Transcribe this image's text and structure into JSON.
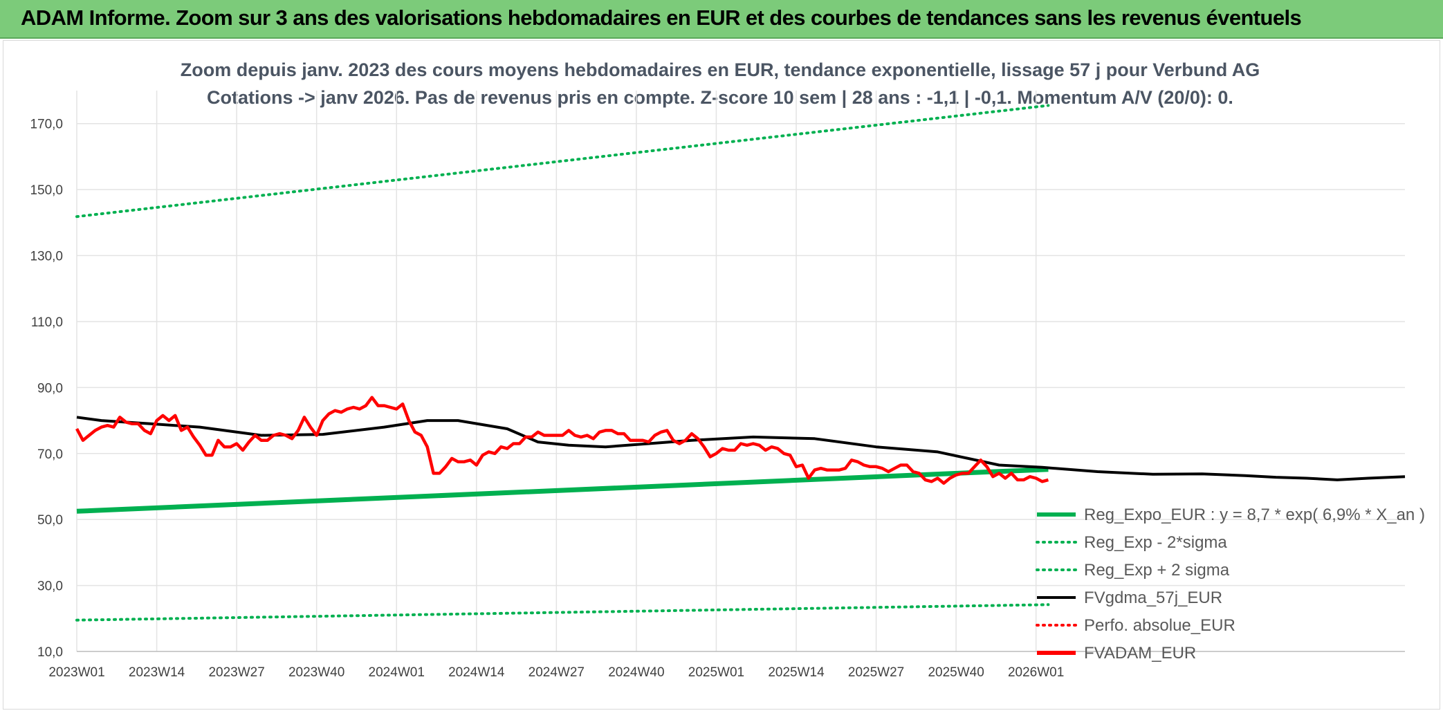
{
  "banner": {
    "title": "ADAM Informe. Zoom sur 3 ans des valorisations hebdomadaires en EUR et des courbes de tendances sans les revenus éventuels",
    "background": "#7ccb7a"
  },
  "chart_data": {
    "type": "line",
    "title": "Zoom depuis janv. 2023 des cours moyens hebdomadaires en EUR, tendance exponentielle, lissage 57 j pour Verbund AG",
    "subtitle": "Cotations -> janv 2026. Pas de revenus pris en compte. Z-score 10 sem | 28 ans : -1,1 | -0,1. Momentum A/V (20/0): 0.",
    "xlabel": "",
    "ylabel": "",
    "ylim": [
      10,
      180
    ],
    "yticks": [
      "10,0",
      "30,0",
      "50,0",
      "70,0",
      "90,0",
      "110,0",
      "130,0",
      "150,0",
      "170,0"
    ],
    "ytick_values": [
      10,
      30,
      50,
      70,
      90,
      110,
      130,
      150,
      170
    ],
    "x_categories": [
      "2023W01",
      "2023W14",
      "2023W27",
      "2023W40",
      "2024W01",
      "2024W14",
      "2024W27",
      "2024W40",
      "2025W01",
      "2025W14",
      "2025W27",
      "2025W40",
      "2026W01"
    ],
    "n_weeks": 159,
    "grid": true,
    "legend_position": "bottom-right",
    "series": [
      {
        "name": "Reg_Expo_EUR : y = 8,7 * exp( 6,9% * X_an )",
        "color": "#00b050",
        "style": "solid-thick",
        "points": [
          [
            0,
            52.5
          ],
          [
            158,
            65.2
          ]
        ]
      },
      {
        "name": "Reg_Exp - 2*sigma",
        "color": "#00b050",
        "style": "dotted",
        "points": [
          [
            0,
            19.5
          ],
          [
            158,
            24.2
          ]
        ]
      },
      {
        "name": "Reg_Exp + 2 sigma",
        "color": "#00b050",
        "style": "dotted",
        "points": [
          [
            0,
            141.8
          ],
          [
            158,
            175.5
          ]
        ]
      },
      {
        "name": "FVgdma_57j_EUR",
        "color": "#000000",
        "style": "solid",
        "points": [
          [
            0,
            81
          ],
          [
            4,
            80
          ],
          [
            12,
            79
          ],
          [
            20,
            78
          ],
          [
            30,
            75.5
          ],
          [
            40,
            75.8
          ],
          [
            50,
            78
          ],
          [
            57,
            80
          ],
          [
            62,
            80
          ],
          [
            70,
            77.5
          ],
          [
            75,
            73.5
          ],
          [
            80,
            72.5
          ],
          [
            86,
            72
          ],
          [
            93,
            73
          ],
          [
            100,
            74
          ],
          [
            110,
            75
          ],
          [
            120,
            74.5
          ],
          [
            130,
            72
          ],
          [
            140,
            70.5
          ],
          [
            150,
            66.5
          ],
          [
            157,
            65.8
          ],
          [
            166,
            64.5
          ],
          [
            175,
            63.7
          ],
          [
            183,
            63.8
          ],
          [
            190,
            63.3
          ],
          [
            195,
            62.8
          ],
          [
            200,
            62.5
          ],
          [
            205,
            62
          ],
          [
            210,
            62.5
          ],
          [
            216,
            63
          ]
        ]
      },
      {
        "name": "Perfo. absolue_EUR",
        "color": "#ff0000",
        "style": "dotted",
        "points": []
      },
      {
        "name": "FVADAM_EUR",
        "color": "#ff0000",
        "style": "solid-thick",
        "points": [
          [
            0,
            77.5
          ],
          [
            1,
            74
          ],
          [
            2,
            75.5
          ],
          [
            3,
            77
          ],
          [
            4,
            78
          ],
          [
            5,
            78.5
          ],
          [
            6,
            78
          ],
          [
            7,
            81
          ],
          [
            8,
            79.5
          ],
          [
            9,
            79
          ],
          [
            10,
            79
          ],
          [
            11,
            77
          ],
          [
            12,
            76
          ],
          [
            13,
            80
          ],
          [
            14,
            81.5
          ],
          [
            15,
            80
          ],
          [
            16,
            81.5
          ],
          [
            17,
            77
          ],
          [
            18,
            78
          ],
          [
            19,
            75
          ],
          [
            20,
            72.5
          ],
          [
            21,
            69.5
          ],
          [
            22,
            69.5
          ],
          [
            23,
            74
          ],
          [
            24,
            72
          ],
          [
            25,
            72
          ],
          [
            26,
            73
          ],
          [
            27,
            71
          ],
          [
            28,
            73.5
          ],
          [
            29,
            75.5
          ],
          [
            30,
            74
          ],
          [
            31,
            74
          ],
          [
            32,
            75.5
          ],
          [
            33,
            76
          ],
          [
            34,
            75.5
          ],
          [
            35,
            74.5
          ],
          [
            36,
            77
          ],
          [
            37,
            81
          ],
          [
            38,
            78
          ],
          [
            39,
            75.5
          ],
          [
            40,
            80
          ],
          [
            41,
            82
          ],
          [
            42,
            83
          ],
          [
            43,
            82.5
          ],
          [
            44,
            83.5
          ],
          [
            45,
            84
          ],
          [
            46,
            83.5
          ],
          [
            47,
            84.5
          ],
          [
            48,
            87
          ],
          [
            49,
            84.5
          ],
          [
            50,
            84.5
          ],
          [
            51,
            84
          ],
          [
            52,
            83.5
          ],
          [
            53,
            85
          ],
          [
            54,
            80
          ],
          [
            55,
            76.5
          ],
          [
            56,
            75.5
          ],
          [
            57,
            72
          ],
          [
            58,
            64
          ],
          [
            59,
            64
          ],
          [
            60,
            66
          ],
          [
            61,
            68.5
          ],
          [
            62,
            67.5
          ],
          [
            63,
            67.5
          ],
          [
            64,
            68
          ],
          [
            65,
            66.5
          ],
          [
            66,
            69.5
          ],
          [
            67,
            70.5
          ],
          [
            68,
            70
          ],
          [
            69,
            72
          ],
          [
            70,
            71.5
          ],
          [
            71,
            73
          ],
          [
            72,
            73
          ],
          [
            73,
            75
          ],
          [
            74,
            75
          ],
          [
            75,
            76.5
          ],
          [
            76,
            75.5
          ],
          [
            77,
            75.5
          ],
          [
            78,
            75.5
          ],
          [
            79,
            75.5
          ],
          [
            80,
            77
          ],
          [
            81,
            75.5
          ],
          [
            82,
            75
          ],
          [
            83,
            75.5
          ],
          [
            84,
            74.5
          ],
          [
            85,
            76.5
          ],
          [
            86,
            77
          ],
          [
            87,
            77
          ],
          [
            88,
            76
          ],
          [
            89,
            76
          ],
          [
            90,
            74
          ],
          [
            91,
            74
          ],
          [
            92,
            74
          ],
          [
            93,
            73.5
          ],
          [
            94,
            75.5
          ],
          [
            95,
            76.5
          ],
          [
            96,
            77
          ],
          [
            97,
            74
          ],
          [
            98,
            73
          ],
          [
            99,
            74
          ],
          [
            100,
            76
          ],
          [
            101,
            74.5
          ],
          [
            102,
            72
          ],
          [
            103,
            69
          ],
          [
            104,
            70
          ],
          [
            105,
            71.5
          ],
          [
            106,
            71
          ],
          [
            107,
            71
          ],
          [
            108,
            73
          ],
          [
            109,
            72.5
          ],
          [
            110,
            73
          ],
          [
            111,
            72.5
          ],
          [
            112,
            71
          ],
          [
            113,
            72
          ],
          [
            114,
            71.5
          ],
          [
            115,
            70
          ],
          [
            116,
            69.5
          ],
          [
            117,
            66
          ],
          [
            118,
            66.5
          ],
          [
            119,
            62.5
          ],
          [
            120,
            65
          ],
          [
            121,
            65.5
          ],
          [
            122,
            65
          ],
          [
            123,
            65
          ],
          [
            124,
            65
          ],
          [
            125,
            65.5
          ],
          [
            126,
            68
          ],
          [
            127,
            67.5
          ],
          [
            128,
            66.5
          ],
          [
            129,
            66
          ],
          [
            130,
            66
          ],
          [
            131,
            65.5
          ],
          [
            132,
            64.5
          ],
          [
            133,
            65.5
          ],
          [
            134,
            66.5
          ],
          [
            135,
            66.5
          ],
          [
            136,
            64.5
          ],
          [
            137,
            64
          ],
          [
            138,
            62
          ],
          [
            139,
            61.5
          ],
          [
            140,
            62.5
          ],
          [
            141,
            61
          ],
          [
            142,
            62.5
          ],
          [
            143,
            63.5
          ],
          [
            144,
            64
          ],
          [
            145,
            64
          ],
          [
            146,
            66
          ],
          [
            147,
            68
          ],
          [
            148,
            66
          ],
          [
            149,
            63
          ],
          [
            150,
            64
          ],
          [
            151,
            62.5
          ],
          [
            152,
            64
          ],
          [
            153,
            62
          ],
          [
            154,
            62
          ],
          [
            155,
            63
          ],
          [
            156,
            62.5
          ],
          [
            157,
            61.5
          ],
          [
            158,
            62
          ]
        ]
      }
    ]
  },
  "legend": {
    "items": [
      {
        "label": "Reg_Expo_EUR : y = 8,7 * exp( 6,9% * X_an )",
        "color": "#00b050",
        "style": "solid-thick"
      },
      {
        "label": "Reg_Exp - 2*sigma",
        "color": "#00b050",
        "style": "dotted"
      },
      {
        "label": "Reg_Exp + 2 sigma",
        "color": "#00b050",
        "style": "dotted"
      },
      {
        "label": "FVgdma_57j_EUR",
        "color": "#000000",
        "style": "solid"
      },
      {
        "label": "Perfo. absolue_EUR",
        "color": "#ff0000",
        "style": "dotted"
      },
      {
        "label": "FVADAM_EUR",
        "color": "#ff0000",
        "style": "solid-thick"
      }
    ]
  }
}
